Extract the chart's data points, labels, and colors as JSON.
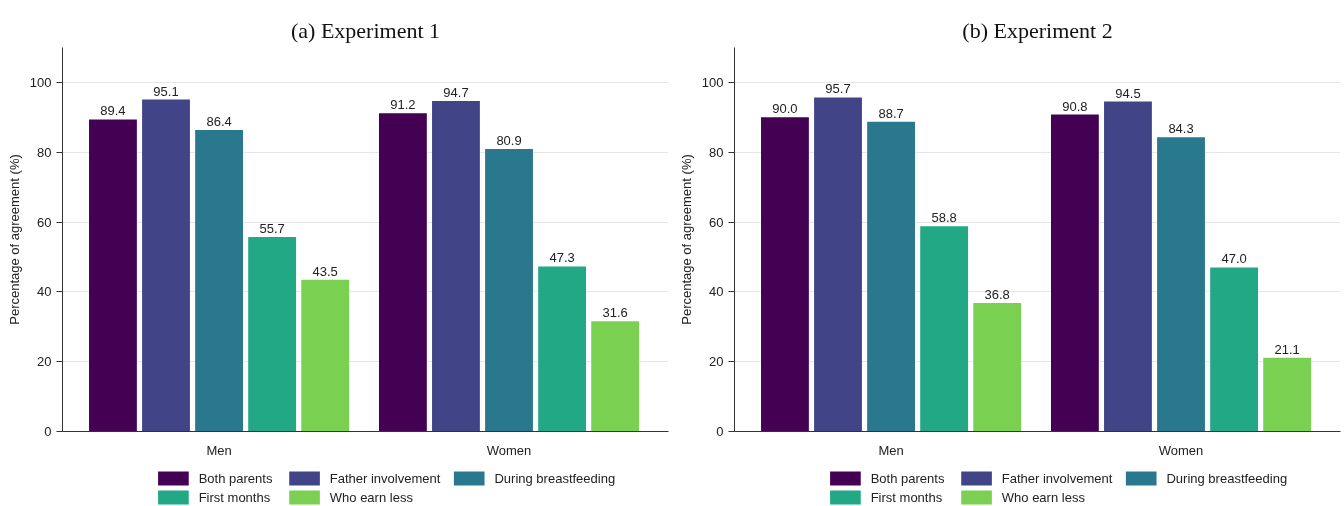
{
  "chart_data": [
    {
      "type": "bar",
      "title": "(a) Experiment 1",
      "ylabel": "Percentage of agreement (%)",
      "categories": [
        "Men",
        "Women"
      ],
      "series": [
        {
          "name": "Both parents",
          "color": "#440154",
          "values": [
            89.4,
            91.2
          ],
          "value_labels": [
            "89.4",
            "91.2"
          ]
        },
        {
          "name": "Father involvement",
          "color": "#414487",
          "values": [
            95.1,
            94.7
          ],
          "value_labels": [
            "95.1",
            "94.7"
          ]
        },
        {
          "name": "During breastfeeding",
          "color": "#2a788e",
          "values": [
            86.4,
            80.9
          ],
          "value_labels": [
            "86.4",
            "80.9"
          ]
        },
        {
          "name": "First months",
          "color": "#22a884",
          "values": [
            55.7,
            47.3
          ],
          "value_labels": [
            "55.7",
            "47.3"
          ]
        },
        {
          "name": "Who earn less",
          "color": "#7ad151",
          "values": [
            43.5,
            31.6
          ],
          "value_labels": [
            "43.5",
            "31.6"
          ]
        }
      ],
      "ylim": [
        0,
        110
      ],
      "yticks": [
        0,
        20,
        40,
        60,
        80,
        100
      ],
      "grid": "y",
      "legend": "bottom"
    },
    {
      "type": "bar",
      "title": "(b) Experiment 2",
      "ylabel": "Percentage of agreement (%)",
      "categories": [
        "Men",
        "Women"
      ],
      "series": [
        {
          "name": "Both parents",
          "color": "#440154",
          "values": [
            90.0,
            90.8
          ],
          "value_labels": [
            "90.0",
            "90.8"
          ]
        },
        {
          "name": "Father involvement",
          "color": "#414487",
          "values": [
            95.7,
            94.5
          ],
          "value_labels": [
            "95.7",
            "94.5"
          ]
        },
        {
          "name": "During breastfeeding",
          "color": "#2a788e",
          "values": [
            88.7,
            84.3
          ],
          "value_labels": [
            "88.7",
            "84.3"
          ]
        },
        {
          "name": "First months",
          "color": "#22a884",
          "values": [
            58.8,
            47.0
          ],
          "value_labels": [
            "58.8",
            "47.0"
          ]
        },
        {
          "name": "Who earn less",
          "color": "#7ad151",
          "values": [
            36.8,
            21.1
          ],
          "value_labels": [
            "36.8",
            "21.1"
          ]
        }
      ],
      "ylim": [
        0,
        110
      ],
      "yticks": [
        0,
        20,
        40,
        60,
        80,
        100
      ],
      "grid": "y",
      "legend": "bottom"
    }
  ]
}
